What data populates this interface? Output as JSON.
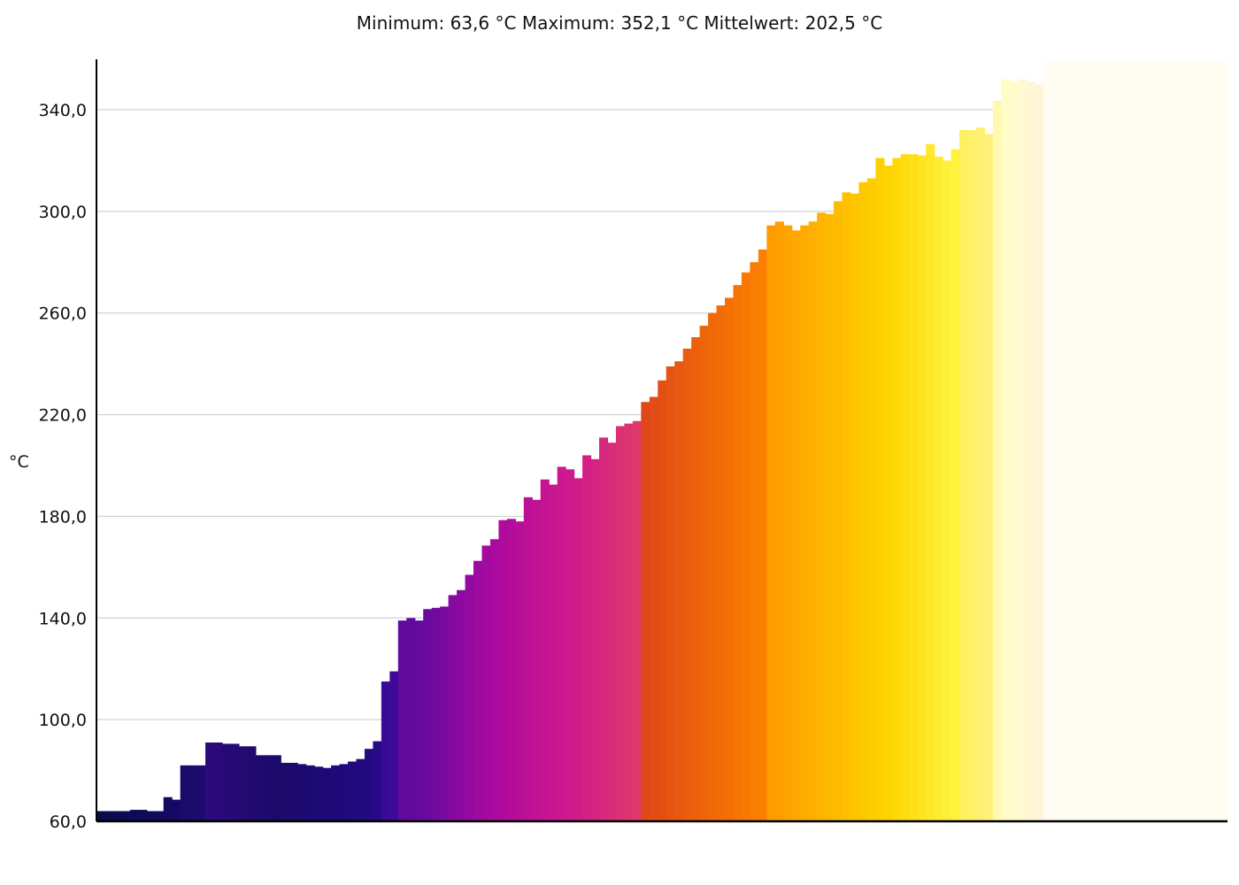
{
  "stats": {
    "min_label": "Minimum:",
    "min_value": "63,6",
    "max_label": "Maximum:",
    "max_value": "352,1",
    "mean_label": "Mittelwert:",
    "mean_value": "202,5",
    "unit": "°C"
  },
  "chart_data": {
    "type": "bar",
    "title": "",
    "xlabel": "",
    "ylabel": "°C",
    "ylim": [
      60,
      360
    ],
    "y_ticks": [
      "60,0",
      "100,0",
      "140,0",
      "180,0",
      "220,0",
      "260,0",
      "300,0",
      "340,0"
    ],
    "grid": true,
    "colormap": "inferno",
    "values": [
      64,
      64,
      64,
      64,
      64.5,
      64.5,
      64,
      64,
      69.5,
      68.5,
      82,
      82,
      82,
      91,
      91,
      90.5,
      90.5,
      89.5,
      89.5,
      86,
      86,
      86,
      83,
      83,
      82.5,
      82,
      81.5,
      81,
      82,
      82.5,
      83.5,
      84.5,
      88.5,
      91.5,
      115,
      119,
      139,
      140,
      139,
      143.5,
      144,
      144.5,
      149,
      151,
      157,
      162.5,
      168.5,
      171,
      178.5,
      179,
      178,
      187.5,
      186.5,
      194.5,
      192.5,
      199.5,
      198.5,
      195,
      204,
      202.5,
      211,
      209,
      215.5,
      216.5,
      217.5,
      225,
      227,
      233.5,
      239,
      241,
      246,
      250.5,
      255,
      260,
      263,
      266,
      271,
      276,
      280,
      285,
      294.5,
      296,
      294.5,
      292.5,
      294.5,
      296,
      299.5,
      299,
      304,
      307.5,
      307,
      311.5,
      313,
      321,
      318,
      321,
      322.5,
      322.5,
      322,
      326.5,
      321.5,
      320,
      324.5,
      332,
      332,
      333,
      330.5,
      343.5,
      352,
      351,
      352,
      351,
      350,
      359,
      359,
      359,
      359,
      359,
      359,
      359,
      359,
      359,
      359,
      359,
      359,
      359,
      359,
      359,
      359,
      359,
      359,
      359,
      359,
      359,
      359
    ],
    "colors": [
      "#0b0a4a",
      "#0c0a4d",
      "#0d0a50",
      "#0e0a53",
      "#0f0a56",
      "#100a59",
      "#110a5c",
      "#120a5f",
      "#130a62",
      "#140a65",
      "#1a0a6a",
      "#1c0a6d",
      "#1e0a70",
      "#2c0a7a",
      "#2a0a78",
      "#280a76",
      "#260a74",
      "#240a72",
      "#220a70",
      "#200a6e",
      "#1e0a6c",
      "#1c0a6a",
      "#1c0a6c",
      "#1c0a6e",
      "#1c0a70",
      "#1c0a72",
      "#1d0a74",
      "#1e0a76",
      "#1f0a78",
      "#200a7a",
      "#210a7c",
      "#220a7e",
      "#240a82",
      "#260a86",
      "#3a0a96",
      "#400a98",
      "#600a9e",
      "#620a9e",
      "#640aa0",
      "#6c0aa0",
      "#720aa0",
      "#780aa0",
      "#840aa0",
      "#8c0aa0",
      "#940aa0",
      "#9c0aa0",
      "#a40aa0",
      "#aa0a9e",
      "#b00a9c",
      "#b40c9a",
      "#b80e98",
      "#bc1096",
      "#c01294",
      "#c41492",
      "#c81690",
      "#cc188e",
      "#ce1a8c",
      "#d01c88",
      "#d22084",
      "#d42480",
      "#d6287c",
      "#d82c78",
      "#da3074",
      "#dc3470",
      "#de386c",
      "#e04818",
      "#e24c16",
      "#e45014",
      "#e65412",
      "#e85810",
      "#ea5c0e",
      "#ec600c",
      "#ee640a",
      "#f06808",
      "#f26c06",
      "#f47004",
      "#f67402",
      "#f87800",
      "#fa7c00",
      "#fc8000",
      "#fe9c00",
      "#fea000",
      "#fea400",
      "#fea800",
      "#feac00",
      "#feb000",
      "#feb400",
      "#feb800",
      "#febc00",
      "#fec000",
      "#fec400",
      "#fec800",
      "#fecc00",
      "#fed000",
      "#fed400",
      "#fed808",
      "#fedc10",
      "#fee018",
      "#fee420",
      "#fee828",
      "#feec30",
      "#fef038",
      "#fef440",
      "#fef060",
      "#fef068",
      "#fef070",
      "#fef078",
      "#fff8b0",
      "#fffcc8",
      "#fffacc",
      "#fff8d0",
      "#fff6d4",
      "#fff4d8",
      "#fffdf2",
      "#fffdf2",
      "#fffdf2",
      "#fffdf2",
      "#fffdf2",
      "#fffdf2",
      "#fffdf2",
      "#fffdf2",
      "#fffdf2",
      "#fffdf2",
      "#fffdf2",
      "#fffdf2",
      "#fffdf2",
      "#fffdf2",
      "#fffdf2",
      "#fffdf2",
      "#fffdf2",
      "#fffdf2",
      "#fffdf2",
      "#fffdf2",
      "#fffdf2",
      "#fffdf2"
    ]
  }
}
